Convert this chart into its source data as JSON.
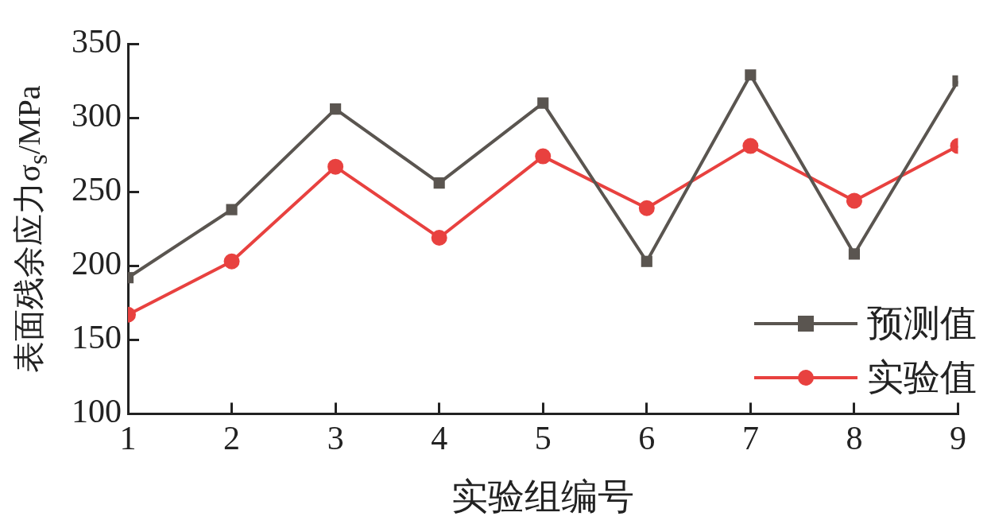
{
  "chart_data": {
    "type": "line",
    "xlabel": "实验组编号",
    "ylabel": "表面残余应力σ$_{s}$/MPa",
    "x": [
      1,
      2,
      3,
      4,
      5,
      6,
      7,
      8,
      9
    ],
    "xlim": [
      1,
      9
    ],
    "xticks": [
      1,
      2,
      3,
      4,
      5,
      6,
      7,
      8,
      9
    ],
    "ylim": [
      100,
      350
    ],
    "yticks": [
      100,
      150,
      200,
      250,
      300,
      350
    ],
    "grid": false,
    "legend": "bottom right",
    "line_style": "solid",
    "series": [
      {
        "name": "预测值",
        "color": "#5a5550",
        "marker": "square",
        "values": [
          192,
          238,
          306,
          256,
          310,
          203,
          329,
          208,
          325
        ]
      },
      {
        "name": "实验值",
        "color": "#e8413f",
        "marker": "circle",
        "values": [
          167,
          203,
          267,
          219,
          274,
          239,
          281,
          244,
          281
        ]
      }
    ]
  }
}
